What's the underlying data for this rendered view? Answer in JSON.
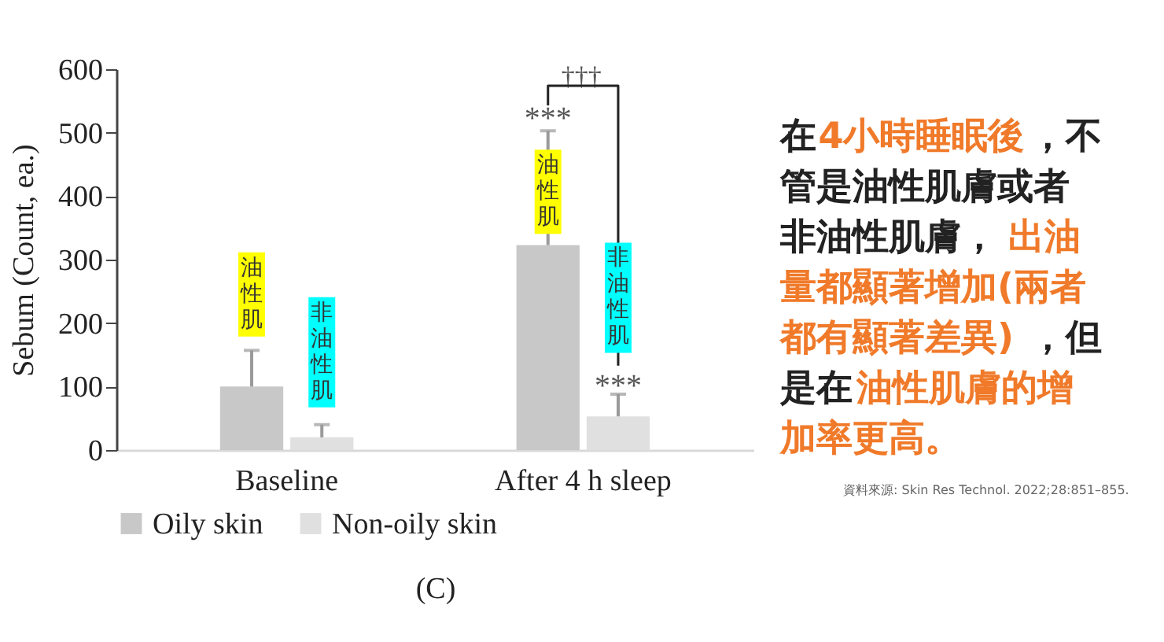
{
  "chart_data": {
    "type": "bar",
    "categories": [
      "Baseline",
      "After 4 h sleep"
    ],
    "ylabel": "Sebum (Count, ea.)",
    "ylim": [
      0,
      600
    ],
    "yticks": [
      0,
      100,
      200,
      300,
      400,
      500,
      600
    ],
    "series": [
      {
        "name": "Oily skin",
        "color": "#c8c8c8",
        "values": [
          100,
          323
        ],
        "errors": [
          [
            100,
            157
          ],
          [
            323,
            503
          ]
        ]
      },
      {
        "name": "Non-oily skin",
        "color": "#e0e0e0",
        "values": [
          20,
          53
        ],
        "errors": [
          [
            20,
            40
          ],
          [
            53,
            88
          ]
        ]
      }
    ],
    "legend": "bottom",
    "grid": false,
    "annotations": [
      "油性肌",
      "非油性肌",
      "油性肌",
      "非油性肌",
      "***",
      "***",
      "†††",
      "在",
      "4小時睡眠後",
      "，不管是油性肌膚或者非油性肌膚，",
      "出油量都顯著增加(兩者都有顯著差異)",
      "，但是在",
      "油性肌膚的增加率更高。",
      "資料來源: Skin Res Technol. 2022;28:851–855.",
      "(C)"
    ]
  }
}
